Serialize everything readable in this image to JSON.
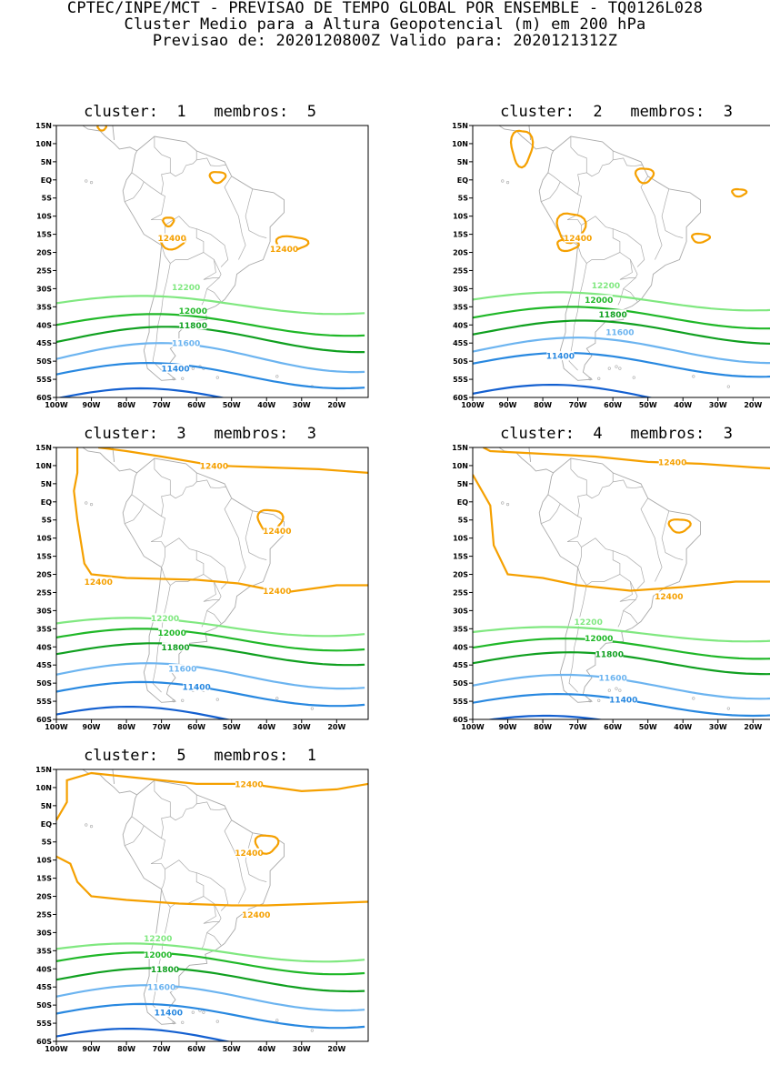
{
  "header": {
    "line1": "CPTEC/INPE/MCT - PREVISAO DE TEMPO GLOBAL POR ENSEMBLE - TQ0126L028",
    "line2": "Cluster Medio para a Altura Geopotencial (m) em 200 hPa",
    "line3": "Previsao de: 2020120800Z    Valido para: 2020121312Z"
  },
  "map": {
    "lat_labels": [
      "15N",
      "10N",
      "5N",
      "EQ",
      "5S",
      "10S",
      "15S",
      "20S",
      "25S",
      "30S",
      "35S",
      "40S",
      "45S",
      "50S",
      "55S",
      "60S"
    ],
    "lon_labels": [
      "100W",
      "90W",
      "80W",
      "70W",
      "60W",
      "50W",
      "40W",
      "30W",
      "20W"
    ],
    "lat_range": [
      -60,
      15
    ],
    "lon_range": [
      -100,
      -11
    ],
    "coast_color": "#a9a9a9",
    "contour_colors": {
      "12400": "#f5a000",
      "12200": "#80e880",
      "12000": "#20b828",
      "11800": "#10a020",
      "11600": "#6cb4f0",
      "11400": "#2888e0",
      "11200": "#1460d0"
    }
  },
  "panels": [
    {
      "title": "cluster:  1   membros:  5",
      "labels": [
        {
          "text": "12400",
          "lon": -67,
          "lat": -16
        },
        {
          "text": "12400",
          "lon": -35,
          "lat": -19
        },
        {
          "text": "12200",
          "lon": -63,
          "lat": -29.5
        },
        {
          "text": "12000",
          "lon": -61,
          "lat": -36
        },
        {
          "text": "11800",
          "lon": -61,
          "lat": -40
        },
        {
          "text": "11600",
          "lon": -63,
          "lat": -45
        },
        {
          "text": "11400",
          "lon": -66,
          "lat": -52
        }
      ]
    },
    {
      "title": "cluster:  2   membros:  3",
      "labels": [
        {
          "text": "12400",
          "lon": -70,
          "lat": -16
        },
        {
          "text": "12200",
          "lon": -62,
          "lat": -29
        },
        {
          "text": "12000",
          "lon": -64,
          "lat": -33
        },
        {
          "text": "11800",
          "lon": -60,
          "lat": -37
        },
        {
          "text": "11600",
          "lon": -58,
          "lat": -42
        },
        {
          "text": "11400",
          "lon": -75,
          "lat": -48.5
        }
      ]
    },
    {
      "title": "cluster:  3   membros:  3",
      "labels": [
        {
          "text": "12400",
          "lon": -55,
          "lat": 10
        },
        {
          "text": "12400",
          "lon": -37,
          "lat": -8
        },
        {
          "text": "12400",
          "lon": -88,
          "lat": -22
        },
        {
          "text": "12400",
          "lon": -37,
          "lat": -24.5
        },
        {
          "text": "12200",
          "lon": -69,
          "lat": -32
        },
        {
          "text": "12000",
          "lon": -67,
          "lat": -36
        },
        {
          "text": "11800",
          "lon": -66,
          "lat": -40
        },
        {
          "text": "11600",
          "lon": -64,
          "lat": -46
        },
        {
          "text": "11400",
          "lon": -60,
          "lat": -51
        }
      ]
    },
    {
      "title": "cluster:  4   membros:  3",
      "labels": [
        {
          "text": "12400",
          "lon": -43,
          "lat": 11
        },
        {
          "text": "12400",
          "lon": -44,
          "lat": -26
        },
        {
          "text": "12200",
          "lon": -67,
          "lat": -33
        },
        {
          "text": "12000",
          "lon": -64,
          "lat": -37.5
        },
        {
          "text": "11800",
          "lon": -61,
          "lat": -42
        },
        {
          "text": "11600",
          "lon": -60,
          "lat": -48.5
        },
        {
          "text": "11400",
          "lon": -57,
          "lat": -54.5
        }
      ]
    },
    {
      "title": "cluster:  5   membros:  1",
      "labels": [
        {
          "text": "12400",
          "lon": -45,
          "lat": 11
        },
        {
          "text": "12400",
          "lon": -45,
          "lat": -8
        },
        {
          "text": "12400",
          "lon": -43,
          "lat": -25
        },
        {
          "text": "12200",
          "lon": -71,
          "lat": -31.5
        },
        {
          "text": "12000",
          "lon": -71,
          "lat": -36
        },
        {
          "text": "11800",
          "lon": -69,
          "lat": -40
        },
        {
          "text": "11600",
          "lon": -70,
          "lat": -45
        },
        {
          "text": "11400",
          "lon": -68,
          "lat": -52
        }
      ]
    }
  ]
}
